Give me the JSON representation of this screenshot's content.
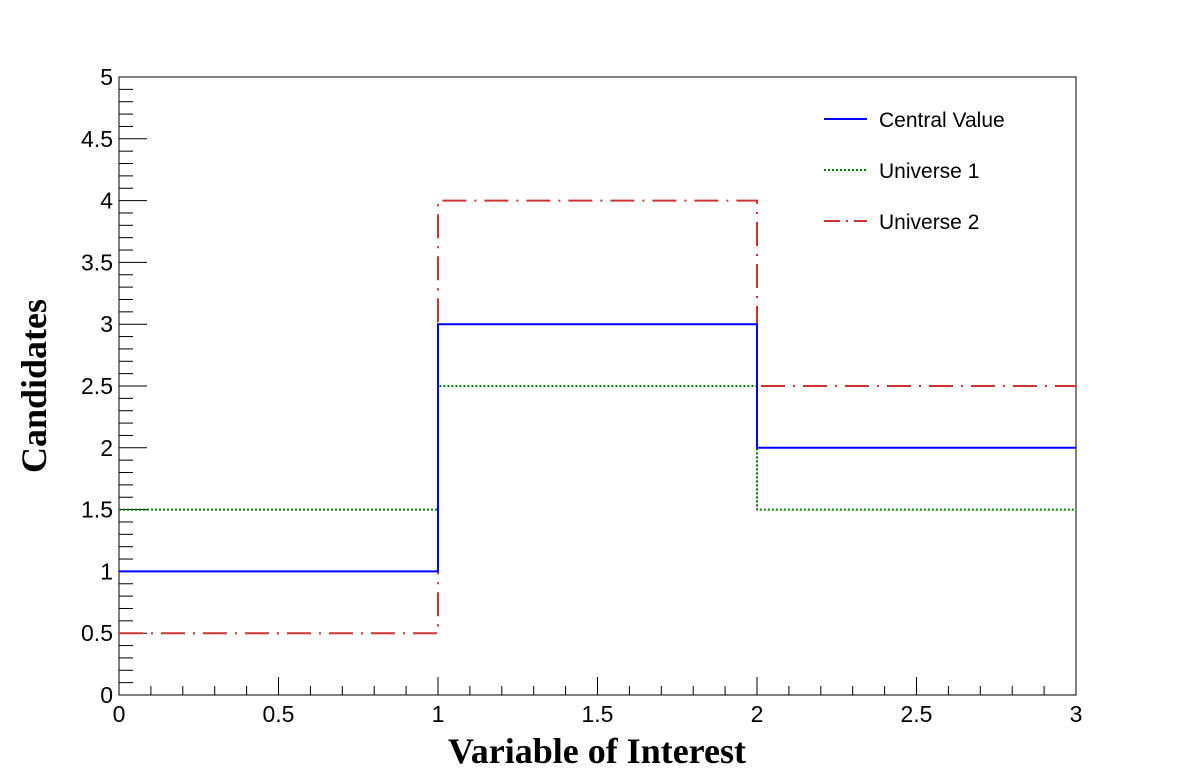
{
  "chart_data": {
    "type": "line",
    "step": true,
    "xlabel": "Variable of Interest",
    "ylabel": "Candidates",
    "xlim": [
      0,
      3
    ],
    "ylim": [
      0,
      5
    ],
    "x_ticks": [
      "0",
      "0.5",
      "1",
      "1.5",
      "2",
      "2.5",
      "3"
    ],
    "y_ticks": [
      "0",
      "0.5",
      "1",
      "1.5",
      "2",
      "2.5",
      "3",
      "3.5",
      "4",
      "4.5",
      "5"
    ],
    "grid": false,
    "legend_position": "top-right",
    "bin_edges": [
      0,
      1,
      2,
      3
    ],
    "series": [
      {
        "name": "Central Value",
        "values": [
          1,
          3,
          2
        ],
        "color": "#0000ff",
        "style": "solid"
      },
      {
        "name": "Universe 1",
        "values": [
          1.5,
          2.5,
          1.5
        ],
        "color": "#007a00",
        "style": "dotted"
      },
      {
        "name": "Universe 2",
        "values": [
          0.5,
          4,
          2.5
        ],
        "color": "#cc3333",
        "style": "dashdot"
      }
    ]
  }
}
